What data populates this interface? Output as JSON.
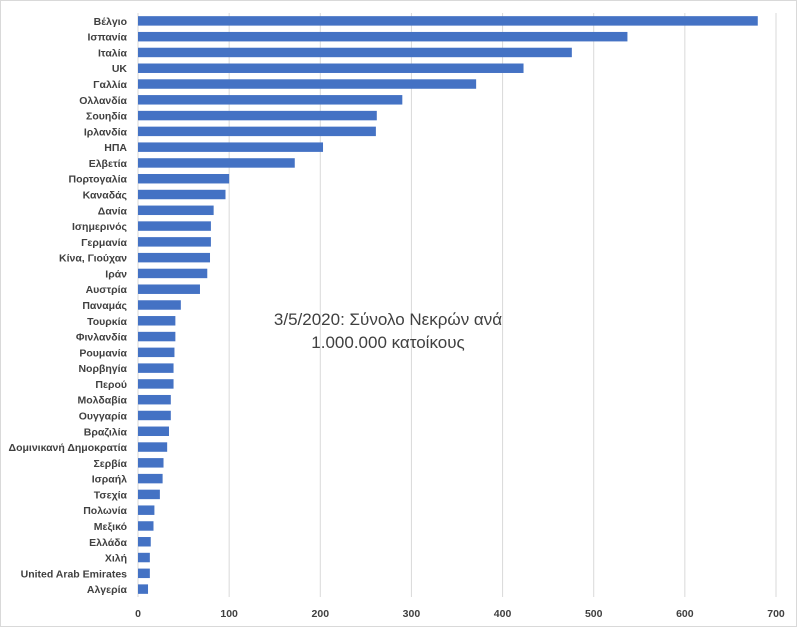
{
  "chart_data": {
    "type": "bar",
    "orientation": "horizontal",
    "title": "3/5/2020: Σύνολο Νεκρών ανά 1.000.000 κατοίκους",
    "title_lines": [
      "3/5/2020: Σύνολο Νεκρών ανά",
      "1.000.000 κατοίκους"
    ],
    "xlabel": "",
    "ylabel": "",
    "xlim": [
      0,
      700
    ],
    "x_ticks": [
      "0",
      "100",
      "200",
      "300",
      "400",
      "500",
      "600",
      "700"
    ],
    "grid": true,
    "bar_color": "#4472c4",
    "categories": [
      "Βέλγιο",
      "Ισπανία",
      "Ιταλία",
      "UK",
      "Γαλλία",
      "Ολλανδία",
      "Σουηδία",
      "Ιρλανδία",
      "ΗΠΑ",
      "Ελβετία",
      "Πορτογαλία",
      "Καναδάς",
      "Δανία",
      "Ισημερινός",
      "Γερμανία",
      "Κίνα, Γιούχαν",
      "Ιράν",
      "Αυστρία",
      "Παναμάς",
      "Τουρκία",
      "Φινλανδία",
      "Ρουμανία",
      "Νορβηγία",
      "Περού",
      "Μολδαβία",
      "Ουγγαρία",
      "Βραζιλία",
      "Δομινικανή Δημοκρατία",
      "Σερβία",
      "Ισραήλ",
      "Τσεχία",
      "Πολωνία",
      "Μεξικό",
      "Ελλάδα",
      "Χιλή",
      "United Arab Emirates",
      "Αλγερία"
    ],
    "values": [
      680,
      537,
      476,
      423,
      371,
      290,
      262,
      261,
      203,
      172,
      100,
      96,
      83,
      80,
      80,
      79,
      76,
      68,
      47,
      41,
      41,
      40,
      39,
      39,
      36,
      36,
      34,
      32,
      28,
      27,
      24,
      18,
      17,
      14,
      13,
      13,
      11
    ]
  }
}
